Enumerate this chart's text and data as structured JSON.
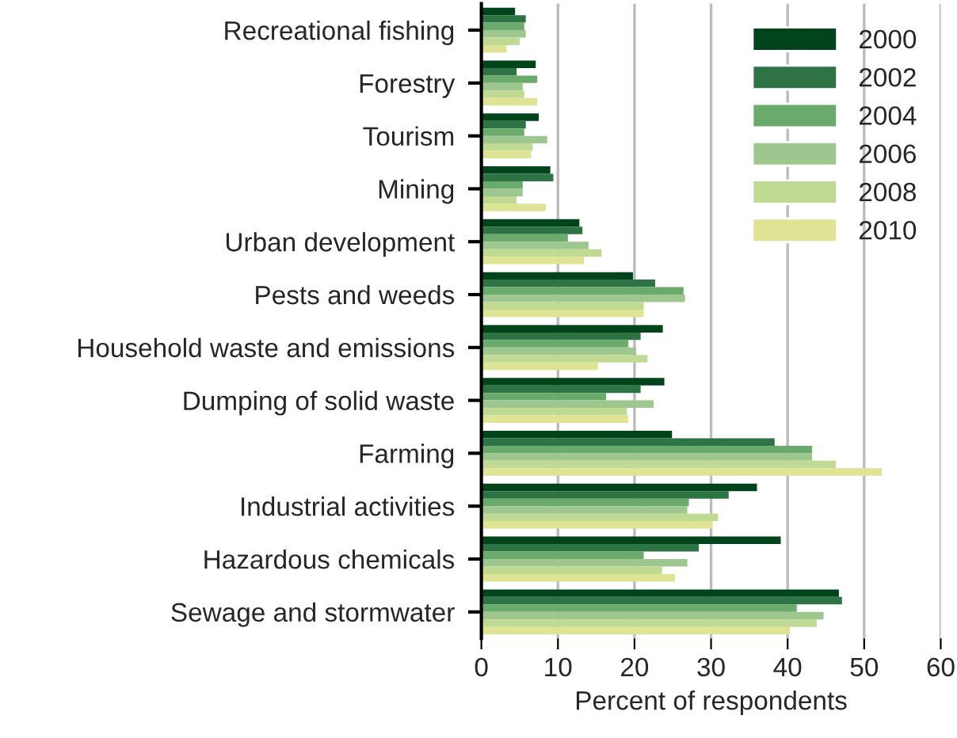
{
  "chart_data": {
    "type": "bar",
    "orientation": "horizontal",
    "xlabel": "Percent of respondents",
    "categories": [
      "Recreational fishing",
      "Forestry",
      "Tourism",
      "Mining",
      "Urban development",
      "Pests and weeds",
      "Household waste and emissions",
      "Dumping of solid waste",
      "Farming",
      "Industrial activities",
      "Hazardous chemicals",
      "Sewage and stormwater"
    ],
    "series": [
      {
        "name": "2000",
        "color": "#00441b",
        "values": [
          4.4,
          7.1,
          7.5,
          9.0,
          12.8,
          19.8,
          23.7,
          23.9,
          24.9,
          36.0,
          39.1,
          46.7
        ]
      },
      {
        "name": "2002",
        "color": "#2e7344",
        "values": [
          5.8,
          4.6,
          5.8,
          9.4,
          13.2,
          22.7,
          20.8,
          20.8,
          38.3,
          32.3,
          28.4,
          47.1
        ]
      },
      {
        "name": "2004",
        "color": "#6aaa6a",
        "values": [
          5.6,
          7.3,
          5.6,
          5.4,
          11.3,
          26.4,
          19.2,
          16.3,
          43.2,
          27.1,
          21.2,
          41.2
        ]
      },
      {
        "name": "2006",
        "color": "#9dc78f",
        "values": [
          5.8,
          5.4,
          8.6,
          5.4,
          14.0,
          26.6,
          20.2,
          22.5,
          43.2,
          26.9,
          26.9,
          44.7
        ]
      },
      {
        "name": "2008",
        "color": "#c0d993",
        "values": [
          5.0,
          5.6,
          6.7,
          4.6,
          15.7,
          21.2,
          21.7,
          19.0,
          46.3,
          30.9,
          23.6,
          43.8
        ]
      },
      {
        "name": "2010",
        "color": "#dfe394",
        "values": [
          3.3,
          7.3,
          6.5,
          8.4,
          13.4,
          21.2,
          15.2,
          19.2,
          52.3,
          30.2,
          25.3,
          40.3
        ]
      }
    ],
    "xlim": [
      0,
      60
    ],
    "xticks": [
      0,
      10,
      20,
      30,
      40,
      50,
      60
    ],
    "grid": "x",
    "legend": "top right"
  }
}
